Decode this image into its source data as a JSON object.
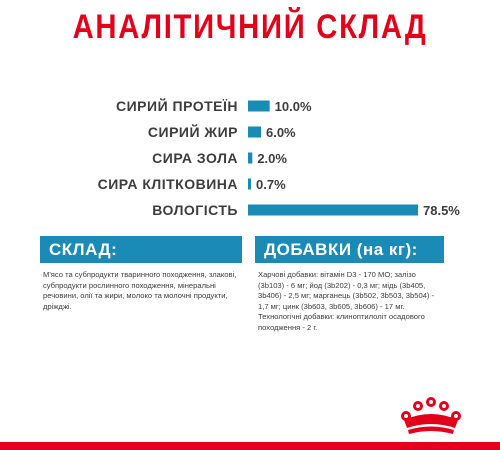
{
  "title": "АНАЛІТИЧНИЙ СКЛАД",
  "colors": {
    "accent_red": "#e2001a",
    "bar_blue": "#1a8ab7",
    "text_dark": "#3d3d3d"
  },
  "chart_data": {
    "type": "bar",
    "orientation": "horizontal",
    "title": "АНАЛІТИЧНИЙ СКЛАД",
    "categories": [
      "СИРИЙ ПРОТЕЇН",
      "СИРИЙ ЖИР",
      "СИРА ЗОЛА",
      "СИРА КЛІТКОВИНА",
      "ВОЛОГІСТЬ"
    ],
    "values": [
      10.0,
      6.0,
      2.0,
      0.7,
      78.5
    ],
    "value_labels": [
      "10.0%",
      "6.0%",
      "2.0%",
      "0.7%",
      "78.5%"
    ],
    "unit": "%",
    "xlim": [
      0,
      78.5
    ],
    "grid": false,
    "legend": "none"
  },
  "composition": {
    "header": "СКЛАД:",
    "text": "М'ясо та субпродукти тваринного походження, злакові, субпродукти рослинного походження, мінеральні речовини, олії та жири, молоко та молочні продукти, дріжджі."
  },
  "additives": {
    "header": "ДОБАВКИ (на кг):",
    "text": "Харчові добавки: вітамін D3 - 170 МО; залізо (3b103) - 6 мг; йод (3b202) - 0,3 мг; мідь (3b405, 3b406) - 2,5 мг; марганець (3b502, 3b503, 3b504) - 1,7 мг; цинк (3b603, 3b605, 3b606) - 17 мг. Технологічні добавки: клиноптилоліт осадового походження - 2 г."
  },
  "logo": {
    "icon": "royal-canin-crown-icon"
  }
}
